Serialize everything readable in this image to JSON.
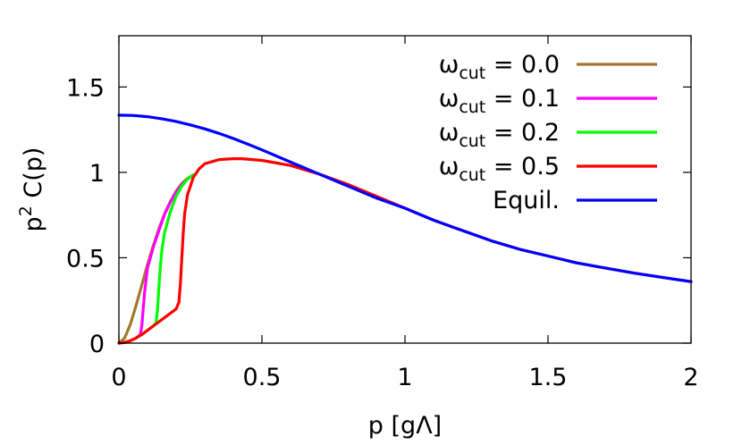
{
  "chart_data": {
    "type": "line",
    "xlabel": "p [gΛ]",
    "ylabel": "p² C(p)",
    "xlim": [
      0,
      2
    ],
    "ylim": [
      0,
      1.8
    ],
    "x_ticks": [
      0,
      0.5,
      1,
      1.5,
      2
    ],
    "x_tick_labels": [
      "0",
      "0.5",
      "1",
      "1.5",
      "2"
    ],
    "y_ticks": [
      0,
      0.5,
      1,
      1.5
    ],
    "y_tick_labels": [
      "0",
      "0.5",
      "1",
      "1.5"
    ],
    "grid": false,
    "legend_placement": "top-right",
    "series": [
      {
        "name": "ωcut = 0.0",
        "legend_base": "ω",
        "legend_sub": "cut",
        "legend_tail": " = 0.0",
        "color": "#a0792b",
        "x": [
          0,
          0.02,
          0.04,
          0.06,
          0.08,
          0.1,
          0.12,
          0.14,
          0.16,
          0.18,
          0.2,
          0.22,
          0.24,
          0.26
        ],
        "y": [
          0,
          0.03,
          0.11,
          0.22,
          0.34,
          0.46,
          0.57,
          0.67,
          0.76,
          0.83,
          0.89,
          0.935,
          0.965,
          0.985
        ]
      },
      {
        "name": "ωcut = 0.1",
        "legend_base": "ω",
        "legend_sub": "cut",
        "legend_tail": " = 0.1",
        "color": "#ff00ff",
        "x": [
          0,
          0.02,
          0.04,
          0.06,
          0.075,
          0.08,
          0.085,
          0.09,
          0.1,
          0.12,
          0.14,
          0.16,
          0.18,
          0.2,
          0.22,
          0.24,
          0.26
        ],
        "y": [
          0,
          0.004,
          0.014,
          0.03,
          0.05,
          0.1,
          0.2,
          0.3,
          0.44,
          0.56,
          0.66,
          0.755,
          0.825,
          0.885,
          0.93,
          0.96,
          0.985
        ]
      },
      {
        "name": "ωcut = 0.2",
        "legend_base": "ω",
        "legend_sub": "cut",
        "legend_tail": " = 0.2",
        "color": "#00ff00",
        "x": [
          0,
          0.02,
          0.04,
          0.06,
          0.08,
          0.1,
          0.12,
          0.13,
          0.135,
          0.14,
          0.145,
          0.15,
          0.16,
          0.18,
          0.2,
          0.22,
          0.24,
          0.26
        ],
        "y": [
          0,
          0.004,
          0.014,
          0.03,
          0.05,
          0.075,
          0.1,
          0.12,
          0.2,
          0.33,
          0.45,
          0.54,
          0.65,
          0.77,
          0.86,
          0.92,
          0.96,
          0.985
        ]
      },
      {
        "name": "ωcut = 0.5",
        "legend_base": "ω",
        "legend_sub": "cut",
        "legend_tail": " = 0.5",
        "color": "#ff0000",
        "x": [
          0,
          0.02,
          0.04,
          0.06,
          0.08,
          0.1,
          0.12,
          0.14,
          0.16,
          0.18,
          0.2,
          0.21,
          0.215,
          0.22,
          0.225,
          0.23,
          0.24,
          0.26,
          0.28,
          0.3,
          0.35,
          0.4,
          0.43,
          0.5,
          0.6,
          0.7,
          0.8,
          0.9,
          1.0,
          1.1,
          1.2,
          1.3,
          1.4,
          1.5,
          1.6,
          1.7,
          1.8,
          1.9,
          2.0
        ],
        "y": [
          0,
          0.004,
          0.014,
          0.03,
          0.05,
          0.075,
          0.1,
          0.125,
          0.15,
          0.175,
          0.2,
          0.24,
          0.35,
          0.5,
          0.65,
          0.76,
          0.87,
          0.97,
          1.02,
          1.05,
          1.075,
          1.08,
          1.08,
          1.07,
          1.04,
          0.99,
          0.93,
          0.86,
          0.79,
          0.72,
          0.66,
          0.6,
          0.55,
          0.51,
          0.47,
          0.44,
          0.41,
          0.385,
          0.36
        ]
      },
      {
        "name": "Equil.",
        "legend_base": "Equil.",
        "legend_sub": "",
        "legend_tail": "",
        "color": "#0000ff",
        "x": [
          0,
          0.05,
          0.1,
          0.15,
          0.2,
          0.25,
          0.3,
          0.35,
          0.4,
          0.45,
          0.5,
          0.6,
          0.7,
          0.8,
          0.9,
          1.0,
          1.1,
          1.2,
          1.3,
          1.4,
          1.5,
          1.6,
          1.7,
          1.8,
          1.9,
          2.0
        ],
        "y": [
          1.335,
          1.333,
          1.326,
          1.314,
          1.298,
          1.278,
          1.255,
          1.228,
          1.198,
          1.166,
          1.132,
          1.06,
          0.99,
          0.92,
          0.85,
          0.79,
          0.72,
          0.66,
          0.6,
          0.55,
          0.51,
          0.47,
          0.44,
          0.41,
          0.385,
          0.36
        ]
      }
    ]
  }
}
